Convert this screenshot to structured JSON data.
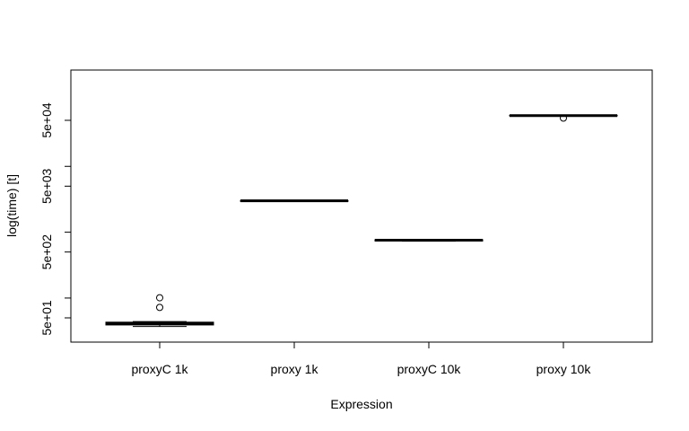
{
  "chart_data": {
    "type": "boxplot",
    "title": "",
    "xlabel": "Expression",
    "ylabel": "log(time) [t]",
    "y_scale": "log10",
    "ylim": [
      30,
      80000
    ],
    "y_ticks": [
      {
        "value": 50,
        "label": "5e+01"
      },
      {
        "value": 100,
        "label": ""
      },
      {
        "value": 500,
        "label": "5e+02"
      },
      {
        "value": 1000,
        "label": ""
      },
      {
        "value": 5000,
        "label": "5e+03"
      },
      {
        "value": 10000,
        "label": ""
      },
      {
        "value": 50000,
        "label": "5e+04"
      }
    ],
    "categories": [
      "proxyC 1k",
      "proxy 1k",
      "proxyC 10k",
      "proxy 10k"
    ],
    "boxes": [
      {
        "name": "proxyC 1k",
        "whisker_low": 37,
        "q1": 39,
        "median": 41,
        "q3": 43,
        "whisker_high": 44,
        "outliers": [
          72,
          101
        ]
      },
      {
        "name": "proxy 1k",
        "whisker_low": 3000,
        "q1": 3000,
        "median": 3000,
        "q3": 3000,
        "whisker_high": 3000,
        "outliers": []
      },
      {
        "name": "proxyC 10k",
        "whisker_low": 730,
        "q1": 735,
        "median": 755,
        "q3": 770,
        "whisker_high": 780,
        "outliers": []
      },
      {
        "name": "proxy 10k",
        "whisker_low": 58000,
        "q1": 58500,
        "median": 59000,
        "q3": 59500,
        "whisker_high": 60000,
        "outliers": [
          54000
        ]
      }
    ]
  }
}
